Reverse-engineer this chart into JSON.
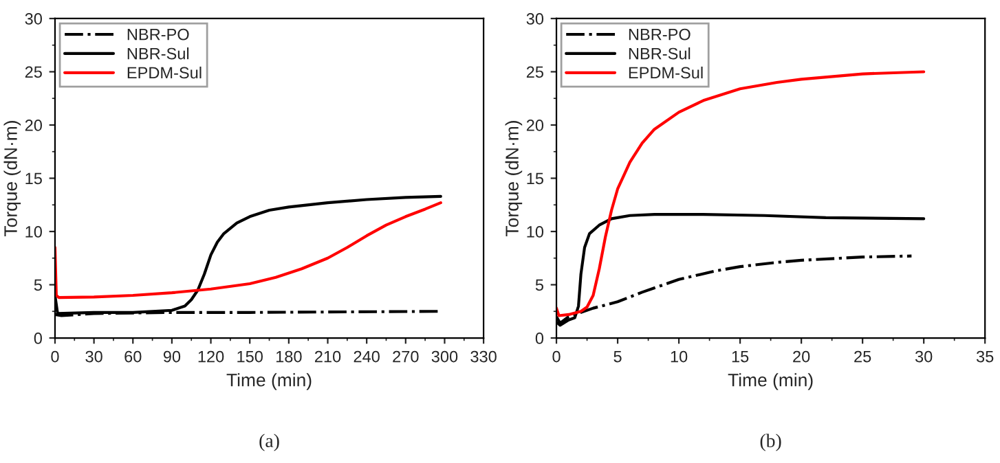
{
  "chart_data": [
    {
      "type": "line",
      "xlabel": "Time (min)",
      "ylabel": "Torque (dN·m)",
      "xlim": [
        0,
        330
      ],
      "ylim": [
        0,
        30
      ],
      "xticks": [
        0,
        30,
        60,
        90,
        120,
        150,
        180,
        210,
        240,
        270,
        300,
        330
      ],
      "yticks": [
        0,
        5,
        10,
        15,
        20,
        25,
        30
      ],
      "legend": "top left",
      "grid": false,
      "annotations": [
        "(a)"
      ],
      "series": [
        {
          "name": "NBR-PO",
          "color": "#000000",
          "line_style": "dashdot",
          "x": [
            0,
            5,
            30,
            90,
            150,
            297
          ],
          "values": [
            2.2,
            2.1,
            2.3,
            2.4,
            2.4,
            2.5
          ]
        },
        {
          "name": "NBR-Sul",
          "color": "#000000",
          "line_style": "solid",
          "x": [
            0,
            2,
            30,
            60,
            90,
            100,
            105,
            110,
            115,
            120,
            125,
            130,
            140,
            150,
            165,
            180,
            210,
            240,
            270,
            297
          ],
          "values": [
            4.0,
            2.3,
            2.4,
            2.4,
            2.6,
            3.0,
            3.6,
            4.5,
            6.0,
            7.8,
            9.0,
            9.8,
            10.8,
            11.4,
            12.0,
            12.3,
            12.7,
            13.0,
            13.2,
            13.3
          ]
        },
        {
          "name": "EPDM-Sul",
          "color": "#ff0000",
          "line_style": "solid",
          "x": [
            0,
            1,
            3,
            30,
            60,
            90,
            120,
            150,
            170,
            190,
            210,
            225,
            240,
            255,
            270,
            285,
            297
          ],
          "values": [
            8.5,
            4.0,
            3.8,
            3.85,
            4.0,
            4.25,
            4.6,
            5.1,
            5.7,
            6.5,
            7.5,
            8.5,
            9.6,
            10.6,
            11.4,
            12.1,
            12.7
          ]
        }
      ]
    },
    {
      "type": "line",
      "xlabel": "Time (min)",
      "ylabel": "Torque (dN·m)",
      "xlim": [
        0,
        35
      ],
      "ylim": [
        0,
        30
      ],
      "xticks": [
        0,
        5,
        10,
        15,
        20,
        25,
        30,
        35
      ],
      "yticks": [
        0,
        5,
        10,
        15,
        20,
        25,
        30
      ],
      "legend": "top left",
      "grid": false,
      "annotations": [
        "(b)"
      ],
      "series": [
        {
          "name": "NBR-PO",
          "color": "#000000",
          "line_style": "dashdot",
          "x": [
            0,
            0.3,
            1,
            2,
            3,
            5,
            7,
            10,
            13,
            15,
            18,
            20,
            25,
            29
          ],
          "values": [
            2.0,
            1.4,
            2.0,
            2.4,
            2.8,
            3.4,
            4.3,
            5.5,
            6.3,
            6.7,
            7.1,
            7.3,
            7.6,
            7.7
          ]
        },
        {
          "name": "NBR-Sul",
          "color": "#000000",
          "line_style": "solid",
          "x": [
            0,
            0.3,
            1,
            1.5,
            1.8,
            2,
            2.3,
            2.7,
            3.5,
            4.5,
            6,
            8,
            12,
            17,
            22,
            30
          ],
          "values": [
            1.5,
            1.2,
            1.7,
            1.9,
            3.0,
            6.0,
            8.5,
            9.8,
            10.6,
            11.2,
            11.5,
            11.6,
            11.6,
            11.5,
            11.3,
            11.2
          ]
        },
        {
          "name": "EPDM-Sul",
          "color": "#ff0000",
          "line_style": "solid",
          "x": [
            0,
            0.2,
            1,
            2,
            2.5,
            3,
            3.5,
            4,
            4.5,
            5,
            6,
            7,
            8,
            10,
            12,
            15,
            18,
            20,
            25,
            30
          ],
          "values": [
            2.8,
            2.1,
            2.2,
            2.5,
            2.9,
            4.0,
            6.5,
            9.5,
            12.0,
            14.0,
            16.5,
            18.3,
            19.6,
            21.2,
            22.3,
            23.4,
            24.0,
            24.3,
            24.8,
            25.0
          ]
        }
      ]
    }
  ]
}
